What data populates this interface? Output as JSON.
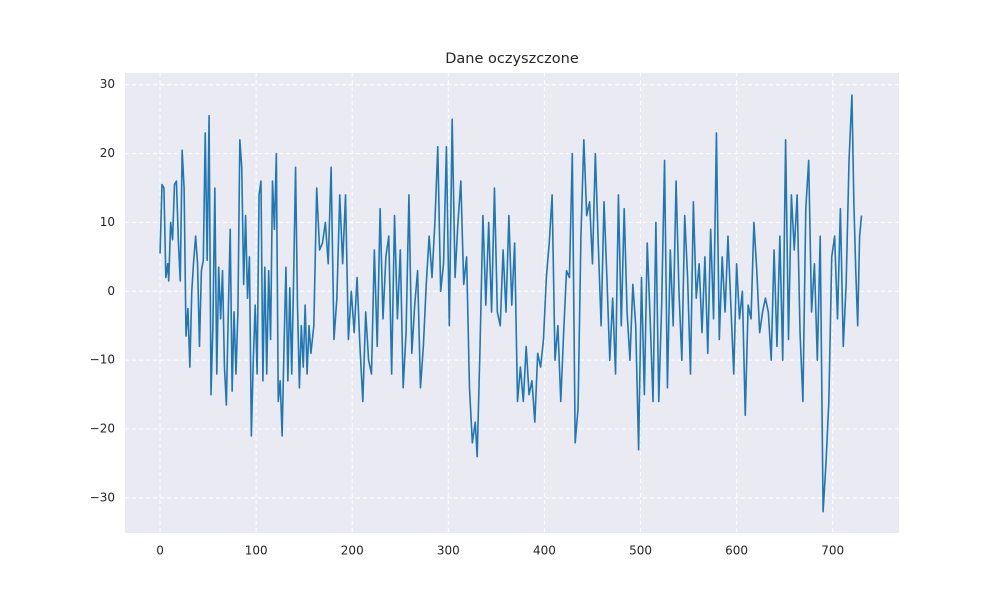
{
  "chart_data": {
    "type": "line",
    "title": "Dane oczyszczone",
    "x": [
      0,
      2,
      4,
      6,
      8,
      9,
      11,
      13,
      15,
      17,
      19,
      21,
      23,
      25,
      27,
      29,
      31,
      33,
      35,
      37,
      39,
      41,
      43,
      45,
      47,
      49,
      51,
      53,
      55,
      57,
      59,
      61,
      63,
      65,
      67,
      69,
      71,
      73,
      75,
      77,
      79,
      81,
      83,
      85,
      87,
      89,
      91,
      93,
      95,
      97,
      99,
      101,
      103,
      105,
      107,
      109,
      111,
      113,
      115,
      117,
      119,
      121,
      123,
      125,
      127,
      129,
      131,
      133,
      135,
      137,
      139,
      141,
      143,
      145,
      147,
      149,
      151,
      153,
      155,
      157,
      160,
      163,
      166,
      169,
      172,
      175,
      178,
      181,
      184,
      187,
      190,
      193,
      196,
      199,
      202,
      205,
      208,
      211,
      214,
      217,
      220,
      223,
      226,
      229,
      232,
      235,
      238,
      241,
      244,
      247,
      250,
      253,
      256,
      259,
      262,
      265,
      268,
      271,
      274,
      277,
      280,
      283,
      286,
      289,
      292,
      295,
      298,
      301,
      304,
      307,
      310,
      313,
      316,
      319,
      322,
      325,
      328,
      330,
      333,
      336,
      339,
      342,
      345,
      348,
      351,
      354,
      357,
      360,
      363,
      366,
      369,
      372,
      375,
      378,
      381,
      384,
      387,
      390,
      393,
      396,
      399,
      402,
      405,
      408,
      411,
      414,
      417,
      420,
      423,
      426,
      429,
      432,
      435,
      438,
      441,
      444,
      447,
      450,
      453,
      456,
      459,
      462,
      465,
      468,
      471,
      474,
      477,
      480,
      483,
      486,
      489,
      492,
      495,
      498,
      501,
      504,
      507,
      510,
      513,
      516,
      519,
      522,
      525,
      528,
      531,
      534,
      537,
      540,
      543,
      546,
      549,
      552,
      555,
      558,
      561,
      564,
      567,
      570,
      573,
      576,
      579,
      582,
      585,
      588,
      591,
      594,
      597,
      600,
      603,
      606,
      609,
      612,
      615,
      618,
      621,
      624,
      627,
      630,
      633,
      636,
      639,
      642,
      645,
      648,
      651,
      654,
      657,
      660,
      663,
      666,
      669,
      672,
      675,
      678,
      681,
      684,
      687,
      690,
      693,
      696,
      699,
      702,
      705,
      708,
      711,
      714,
      717,
      720,
      722,
      724,
      726,
      728,
      730
    ],
    "series": [
      {
        "color": "#1f77b4",
        "values": [
          5.5,
          15.5,
          15,
          2,
          4,
          1.5,
          10,
          7.5,
          15.5,
          16,
          7.5,
          1.5,
          20.5,
          15,
          -6.5,
          -2.5,
          -11,
          0,
          4.5,
          8,
          4,
          -8,
          3,
          4.5,
          23,
          4.5,
          25.5,
          -15,
          -5,
          15,
          -12,
          3.5,
          -4,
          3,
          -11,
          -16.5,
          -3,
          9,
          -14.5,
          -3,
          -12,
          -3,
          22,
          18,
          1,
          11,
          -1,
          5,
          -21,
          -10,
          -2,
          -12,
          14,
          16,
          -13,
          3.5,
          -12,
          3,
          -7,
          16,
          9,
          20,
          -16,
          -13,
          -21,
          -8,
          3.5,
          -13,
          0.5,
          -12,
          2,
          18,
          -2,
          -14,
          -5,
          -11,
          -2,
          -12,
          -5,
          -9,
          -5,
          15,
          6,
          7,
          10,
          4,
          18,
          -7,
          -1,
          14,
          4,
          14,
          -7,
          0,
          -6,
          2,
          -8,
          -16,
          -3,
          -10,
          -12,
          6,
          -8,
          12,
          -4,
          5,
          8,
          -12,
          11,
          -4,
          6,
          -14,
          -6,
          14,
          -9,
          -2,
          3,
          -14,
          -8,
          1,
          8,
          2,
          10,
          21,
          0,
          4,
          21,
          -5,
          25,
          2,
          10,
          16,
          1,
          5,
          -14,
          -22,
          -19,
          -24,
          -8,
          11,
          -2,
          10,
          -3,
          15,
          -3,
          -5,
          6,
          -3,
          11,
          -2,
          7,
          -16,
          -11,
          -16,
          -8,
          -15,
          -13,
          -19,
          -9,
          -11,
          -7,
          2,
          7,
          14,
          -10,
          -5,
          -16,
          -6,
          3,
          2,
          20,
          -22,
          -17,
          8,
          22,
          11,
          13,
          4,
          20,
          7,
          -5,
          13,
          2,
          -10,
          -1,
          -12,
          14,
          -5,
          12,
          -3,
          -10,
          1,
          -5,
          -23,
          2,
          -15,
          7,
          -4,
          -16,
          10,
          -16,
          -2,
          19,
          -14,
          6,
          -5,
          16,
          0,
          -10,
          11,
          2,
          -12,
          13,
          -1,
          4,
          -6,
          5,
          -9,
          9,
          -4,
          23,
          -7,
          5,
          -3,
          8,
          -2,
          -12,
          4,
          -4,
          0,
          -18,
          -2,
          -4,
          10,
          3,
          -6,
          -3,
          -1,
          -3,
          -10,
          6,
          -8,
          8,
          -10,
          22,
          -7,
          14,
          6,
          14,
          -6,
          -16,
          12,
          19,
          -3,
          4,
          -10,
          8,
          -32,
          -25,
          -16,
          5,
          8,
          -4,
          12,
          -8,
          1,
          19,
          28.5,
          13,
          3,
          -5,
          8,
          11
        ]
      }
    ],
    "xlim": [
      -36.5,
      769
    ],
    "ylim": [
      -35.1,
      31.7
    ],
    "xticks": [
      0,
      100,
      200,
      300,
      400,
      500,
      600,
      700
    ],
    "yticks": [
      {
        "value": -30,
        "label": "−30"
      },
      {
        "value": -20,
        "label": "−20"
      },
      {
        "value": -10,
        "label": "−10"
      },
      0,
      10,
      20,
      30
    ],
    "grid": true
  }
}
